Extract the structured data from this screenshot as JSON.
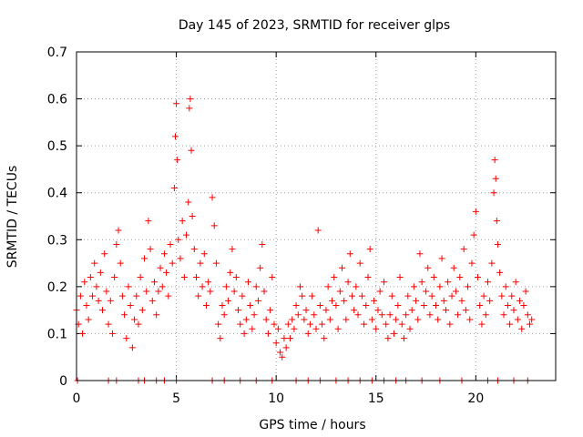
{
  "chart_data": {
    "type": "scatter",
    "title": "Day 145 of 2023, SRMTID for receiver glps",
    "xlabel": "GPS time / hours",
    "ylabel": "SRMTID / TECUs",
    "xlim": [
      0,
      24
    ],
    "ylim": [
      0,
      0.7
    ],
    "xticks": [
      "0",
      "5",
      "10",
      "15",
      "20"
    ],
    "yticks": [
      "0",
      "0.1",
      "0.2",
      "0.3",
      "0.4",
      "0.5",
      "0.6",
      "0.7"
    ],
    "grid": true,
    "marker": "+",
    "color": "#ff0000",
    "series": [
      {
        "name": "SRMTID",
        "points": [
          [
            0.0,
            0.15
          ],
          [
            0.1,
            0.12
          ],
          [
            0.2,
            0.18
          ],
          [
            0.3,
            0.1
          ],
          [
            0.4,
            0.21
          ],
          [
            0.5,
            0.16
          ],
          [
            0.6,
            0.13
          ],
          [
            0.7,
            0.22
          ],
          [
            0.8,
            0.18
          ],
          [
            0.9,
            0.25
          ],
          [
            1.0,
            0.2
          ],
          [
            1.1,
            0.17
          ],
          [
            1.2,
            0.23
          ],
          [
            1.3,
            0.15
          ],
          [
            1.4,
            0.27
          ],
          [
            1.5,
            0.19
          ],
          [
            1.6,
            0.12
          ],
          [
            1.7,
            0.17
          ],
          [
            1.8,
            0.1
          ],
          [
            1.9,
            0.22
          ],
          [
            2.0,
            0.29
          ],
          [
            2.1,
            0.32
          ],
          [
            2.2,
            0.25
          ],
          [
            2.3,
            0.18
          ],
          [
            2.4,
            0.14
          ],
          [
            2.5,
            0.09
          ],
          [
            2.6,
            0.2
          ],
          [
            2.7,
            0.16
          ],
          [
            2.8,
            0.07
          ],
          [
            2.9,
            0.13
          ],
          [
            3.0,
            0.18
          ],
          [
            3.1,
            0.12
          ],
          [
            3.2,
            0.22
          ],
          [
            3.3,
            0.15
          ],
          [
            3.4,
            0.26
          ],
          [
            3.5,
            0.19
          ],
          [
            3.6,
            0.34
          ],
          [
            3.7,
            0.28
          ],
          [
            3.8,
            0.17
          ],
          [
            3.9,
            0.21
          ],
          [
            4.0,
            0.14
          ],
          [
            4.1,
            0.19
          ],
          [
            4.2,
            0.24
          ],
          [
            4.3,
            0.2
          ],
          [
            4.4,
            0.27
          ],
          [
            4.5,
            0.23
          ],
          [
            4.6,
            0.18
          ],
          [
            4.7,
            0.29
          ],
          [
            4.8,
            0.25
          ],
          [
            4.9,
            0.41
          ],
          [
            4.95,
            0.52
          ],
          [
            5.0,
            0.59
          ],
          [
            5.05,
            0.47
          ],
          [
            5.1,
            0.3
          ],
          [
            5.2,
            0.26
          ],
          [
            5.3,
            0.34
          ],
          [
            5.4,
            0.22
          ],
          [
            5.5,
            0.31
          ],
          [
            5.6,
            0.38
          ],
          [
            5.65,
            0.58
          ],
          [
            5.7,
            0.6
          ],
          [
            5.75,
            0.49
          ],
          [
            5.8,
            0.35
          ],
          [
            5.9,
            0.28
          ],
          [
            6.0,
            0.22
          ],
          [
            6.1,
            0.18
          ],
          [
            6.2,
            0.25
          ],
          [
            6.3,
            0.2
          ],
          [
            6.4,
            0.27
          ],
          [
            6.5,
            0.16
          ],
          [
            6.6,
            0.21
          ],
          [
            6.7,
            0.19
          ],
          [
            6.8,
            0.39
          ],
          [
            6.9,
            0.33
          ],
          [
            7.0,
            0.25
          ],
          [
            7.1,
            0.12
          ],
          [
            7.2,
            0.09
          ],
          [
            7.3,
            0.16
          ],
          [
            7.4,
            0.14
          ],
          [
            7.5,
            0.2
          ],
          [
            7.6,
            0.17
          ],
          [
            7.7,
            0.23
          ],
          [
            7.8,
            0.28
          ],
          [
            7.9,
            0.19
          ],
          [
            8.0,
            0.22
          ],
          [
            8.1,
            0.15
          ],
          [
            8.2,
            0.12
          ],
          [
            8.3,
            0.18
          ],
          [
            8.4,
            0.1
          ],
          [
            8.5,
            0.13
          ],
          [
            8.6,
            0.21
          ],
          [
            8.7,
            0.16
          ],
          [
            8.8,
            0.11
          ],
          [
            8.9,
            0.14
          ],
          [
            9.0,
            0.2
          ],
          [
            9.1,
            0.17
          ],
          [
            9.2,
            0.24
          ],
          [
            9.3,
            0.29
          ],
          [
            9.4,
            0.19
          ],
          [
            9.5,
            0.13
          ],
          [
            9.6,
            0.1
          ],
          [
            9.7,
            0.15
          ],
          [
            9.8,
            0.22
          ],
          [
            9.9,
            0.12
          ],
          [
            10.0,
            0.08
          ],
          [
            10.1,
            0.11
          ],
          [
            10.2,
            0.06
          ],
          [
            10.3,
            0.05
          ],
          [
            10.4,
            0.09
          ],
          [
            10.5,
            0.07
          ],
          [
            10.6,
            0.12
          ],
          [
            10.7,
            0.09
          ],
          [
            10.8,
            0.13
          ],
          [
            10.9,
            0.11
          ],
          [
            11.0,
            0.16
          ],
          [
            11.1,
            0.14
          ],
          [
            11.2,
            0.2
          ],
          [
            11.3,
            0.18
          ],
          [
            11.4,
            0.13
          ],
          [
            11.5,
            0.15
          ],
          [
            11.6,
            0.1
          ],
          [
            11.7,
            0.12
          ],
          [
            11.8,
            0.18
          ],
          [
            11.9,
            0.14
          ],
          [
            12.0,
            0.11
          ],
          [
            12.1,
            0.32
          ],
          [
            12.2,
            0.16
          ],
          [
            12.3,
            0.12
          ],
          [
            12.4,
            0.09
          ],
          [
            12.5,
            0.15
          ],
          [
            12.6,
            0.2
          ],
          [
            12.7,
            0.13
          ],
          [
            12.8,
            0.17
          ],
          [
            12.9,
            0.22
          ],
          [
            13.0,
            0.16
          ],
          [
            13.1,
            0.11
          ],
          [
            13.2,
            0.19
          ],
          [
            13.3,
            0.24
          ],
          [
            13.4,
            0.17
          ],
          [
            13.5,
            0.13
          ],
          [
            13.6,
            0.21
          ],
          [
            13.7,
            0.27
          ],
          [
            13.8,
            0.18
          ],
          [
            13.9,
            0.15
          ],
          [
            14.0,
            0.2
          ],
          [
            14.1,
            0.14
          ],
          [
            14.2,
            0.25
          ],
          [
            14.3,
            0.18
          ],
          [
            14.4,
            0.12
          ],
          [
            14.5,
            0.16
          ],
          [
            14.6,
            0.22
          ],
          [
            14.7,
            0.28
          ],
          [
            14.8,
            0.13
          ],
          [
            14.9,
            0.17
          ],
          [
            15.0,
            0.11
          ],
          [
            15.1,
            0.15
          ],
          [
            15.2,
            0.19
          ],
          [
            15.3,
            0.14
          ],
          [
            15.4,
            0.21
          ],
          [
            15.5,
            0.12
          ],
          [
            15.6,
            0.09
          ],
          [
            15.7,
            0.14
          ],
          [
            15.8,
            0.18
          ],
          [
            15.9,
            0.1
          ],
          [
            16.0,
            0.13
          ],
          [
            16.1,
            0.16
          ],
          [
            16.2,
            0.22
          ],
          [
            16.3,
            0.12
          ],
          [
            16.4,
            0.09
          ],
          [
            16.5,
            0.14
          ],
          [
            16.6,
            0.18
          ],
          [
            16.7,
            0.11
          ],
          [
            16.8,
            0.15
          ],
          [
            16.9,
            0.2
          ],
          [
            17.0,
            0.17
          ],
          [
            17.1,
            0.13
          ],
          [
            17.2,
            0.27
          ],
          [
            17.3,
            0.21
          ],
          [
            17.4,
            0.16
          ],
          [
            17.5,
            0.19
          ],
          [
            17.6,
            0.24
          ],
          [
            17.7,
            0.14
          ],
          [
            17.8,
            0.18
          ],
          [
            17.9,
            0.22
          ],
          [
            18.0,
            0.16
          ],
          [
            18.1,
            0.13
          ],
          [
            18.2,
            0.2
          ],
          [
            18.3,
            0.26
          ],
          [
            18.4,
            0.17
          ],
          [
            18.5,
            0.15
          ],
          [
            18.6,
            0.21
          ],
          [
            18.7,
            0.12
          ],
          [
            18.8,
            0.18
          ],
          [
            18.9,
            0.24
          ],
          [
            19.0,
            0.19
          ],
          [
            19.1,
            0.14
          ],
          [
            19.2,
            0.22
          ],
          [
            19.3,
            0.17
          ],
          [
            19.4,
            0.28
          ],
          [
            19.5,
            0.15
          ],
          [
            19.6,
            0.2
          ],
          [
            19.7,
            0.13
          ],
          [
            19.8,
            0.25
          ],
          [
            19.9,
            0.31
          ],
          [
            20.0,
            0.36
          ],
          [
            20.1,
            0.22
          ],
          [
            20.2,
            0.16
          ],
          [
            20.3,
            0.12
          ],
          [
            20.4,
            0.18
          ],
          [
            20.5,
            0.14
          ],
          [
            20.6,
            0.21
          ],
          [
            20.7,
            0.17
          ],
          [
            20.8,
            0.25
          ],
          [
            20.9,
            0.4
          ],
          [
            20.95,
            0.47
          ],
          [
            21.0,
            0.43
          ],
          [
            21.05,
            0.34
          ],
          [
            21.1,
            0.29
          ],
          [
            21.2,
            0.23
          ],
          [
            21.3,
            0.18
          ],
          [
            21.4,
            0.14
          ],
          [
            21.5,
            0.2
          ],
          [
            21.6,
            0.16
          ],
          [
            21.7,
            0.12
          ],
          [
            21.8,
            0.18
          ],
          [
            21.9,
            0.15
          ],
          [
            22.0,
            0.21
          ],
          [
            22.1,
            0.13
          ],
          [
            22.2,
            0.17
          ],
          [
            22.3,
            0.11
          ],
          [
            22.4,
            0.16
          ],
          [
            22.5,
            0.19
          ],
          [
            22.6,
            0.14
          ],
          [
            22.7,
            0.12
          ],
          [
            22.8,
            0.13
          ],
          [
            0.05,
            0.0
          ],
          [
            1.6,
            0.0
          ],
          [
            2.0,
            0.0
          ],
          [
            3.1,
            0.0
          ],
          [
            3.4,
            0.0
          ],
          [
            4.0,
            0.0
          ],
          [
            4.4,
            0.0
          ],
          [
            5.0,
            0.0
          ],
          [
            6.8,
            0.0
          ],
          [
            7.4,
            0.0
          ],
          [
            8.2,
            0.0
          ],
          [
            9.0,
            0.0
          ],
          [
            9.8,
            0.0
          ],
          [
            11.0,
            0.0
          ],
          [
            11.6,
            0.0
          ],
          [
            12.2,
            0.0
          ],
          [
            13.0,
            0.0
          ],
          [
            13.6,
            0.0
          ],
          [
            14.2,
            0.0
          ],
          [
            14.8,
            0.0
          ],
          [
            15.4,
            0.0
          ],
          [
            16.0,
            0.0
          ],
          [
            16.5,
            0.0
          ],
          [
            17.3,
            0.0
          ],
          [
            18.2,
            0.0
          ],
          [
            19.3,
            0.0
          ],
          [
            20.6,
            0.0
          ],
          [
            21.1,
            0.0
          ],
          [
            21.9,
            0.0
          ],
          [
            22.6,
            0.0
          ]
        ]
      }
    ]
  }
}
